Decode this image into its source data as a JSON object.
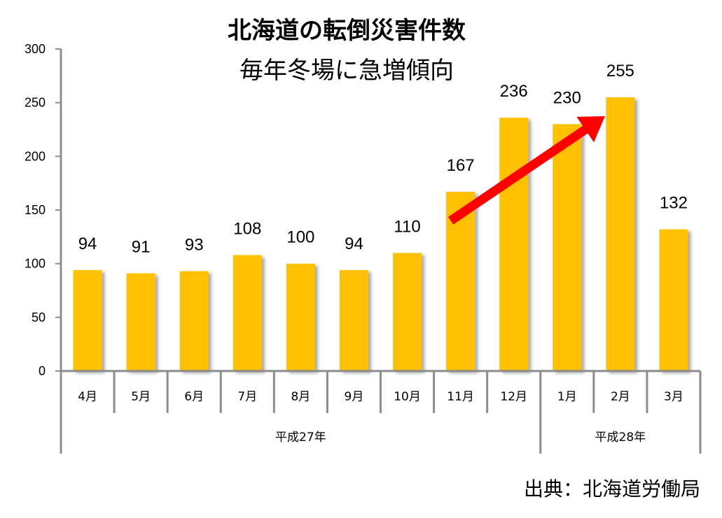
{
  "chart_data": {
    "type": "bar",
    "title": "北海道の転倒災害件数",
    "subtitle": "毎年冬場に急増傾向",
    "categories": [
      "4月",
      "5月",
      "6月",
      "7月",
      "8月",
      "9月",
      "10月",
      "11月",
      "12月",
      "1月",
      "2月",
      "3月"
    ],
    "values": [
      94,
      91,
      93,
      108,
      100,
      94,
      110,
      167,
      236,
      230,
      255,
      132
    ],
    "value_labels": [
      "94",
      "91",
      "93",
      "108",
      "100",
      "94",
      "110",
      "167",
      "236",
      "230",
      "255",
      "132"
    ],
    "yticks": [
      "0",
      "50",
      "100",
      "150",
      "200",
      "250",
      "300"
    ],
    "ylim": [
      0,
      300
    ],
    "groups": [
      {
        "label": "平成27年",
        "from_index": 0,
        "to_index": 8
      },
      {
        "label": "平成28年",
        "from_index": 9,
        "to_index": 11
      }
    ],
    "annotation": {
      "type": "arrow",
      "from_value": 140,
      "from_index": 7,
      "to_value": 240,
      "to_index": 10,
      "color": "#ff0000"
    },
    "bar_color": "#ffc000",
    "source": "出典：北海道労働局"
  }
}
